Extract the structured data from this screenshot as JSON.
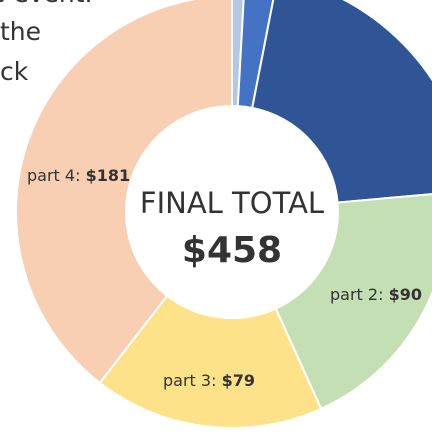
{
  "chart_data": {
    "type": "donut",
    "center_title": "FINAL TOTAL",
    "center_value": "$458",
    "categories": [
      null,
      null,
      null,
      "part 2:",
      "part 3:",
      "part 4:"
    ],
    "values": [
      4,
      10,
      94,
      90,
      79,
      181
    ],
    "value_labels": [
      null,
      null,
      null,
      "$90",
      "$79",
      "$181"
    ],
    "colors": [
      "#b4c7e7",
      "#4472c4",
      "#2f5597",
      "#c5dfb5",
      "#fde28a",
      "#f8cfb3"
    ]
  },
  "text_fragments": [
    "e event.",
    "the",
    "ck"
  ]
}
